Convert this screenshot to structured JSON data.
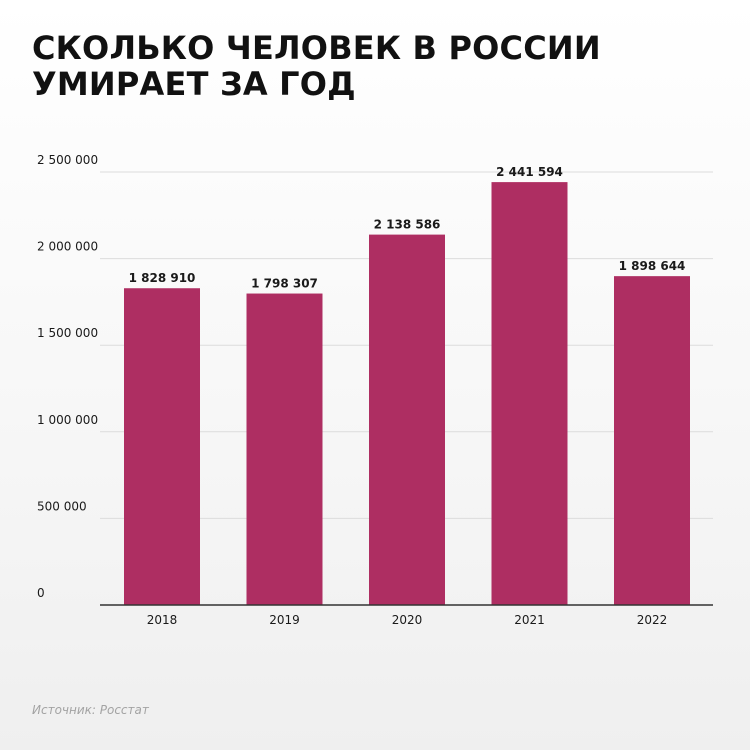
{
  "title": {
    "line1": "СКОЛЬКО ЧЕЛОВЕК В РОССИИ",
    "line2": "УМИРАЕТ ЗА ГОД"
  },
  "source": "Источник: Росстат",
  "colors": {
    "bar": "#AE2E62",
    "grid": "#dcdcdc",
    "axis": "#333333"
  },
  "chart_data": {
    "type": "bar",
    "title": "СКОЛЬКО ЧЕЛОВЕК В РОССИИ УМИРАЕТ ЗА ГОД",
    "xlabel": "",
    "ylabel": "",
    "categories": [
      "2018",
      "2019",
      "2020",
      "2021",
      "2022"
    ],
    "values": [
      1828910,
      1798307,
      2138586,
      2441594,
      1898644
    ],
    "value_labels": [
      "1 828 910",
      "1 798 307",
      "2 138 586",
      "2 441 594",
      "1 898 644"
    ],
    "ylim": [
      0,
      2500000
    ],
    "yticks": [
      0,
      500000,
      1000000,
      1500000,
      2000000,
      2500000
    ],
    "ytick_labels": [
      "0",
      "500 000",
      "1 000 000",
      "1 500 000",
      "2 000 000",
      "2 500 000"
    ],
    "grid": true,
    "legend": "none"
  }
}
